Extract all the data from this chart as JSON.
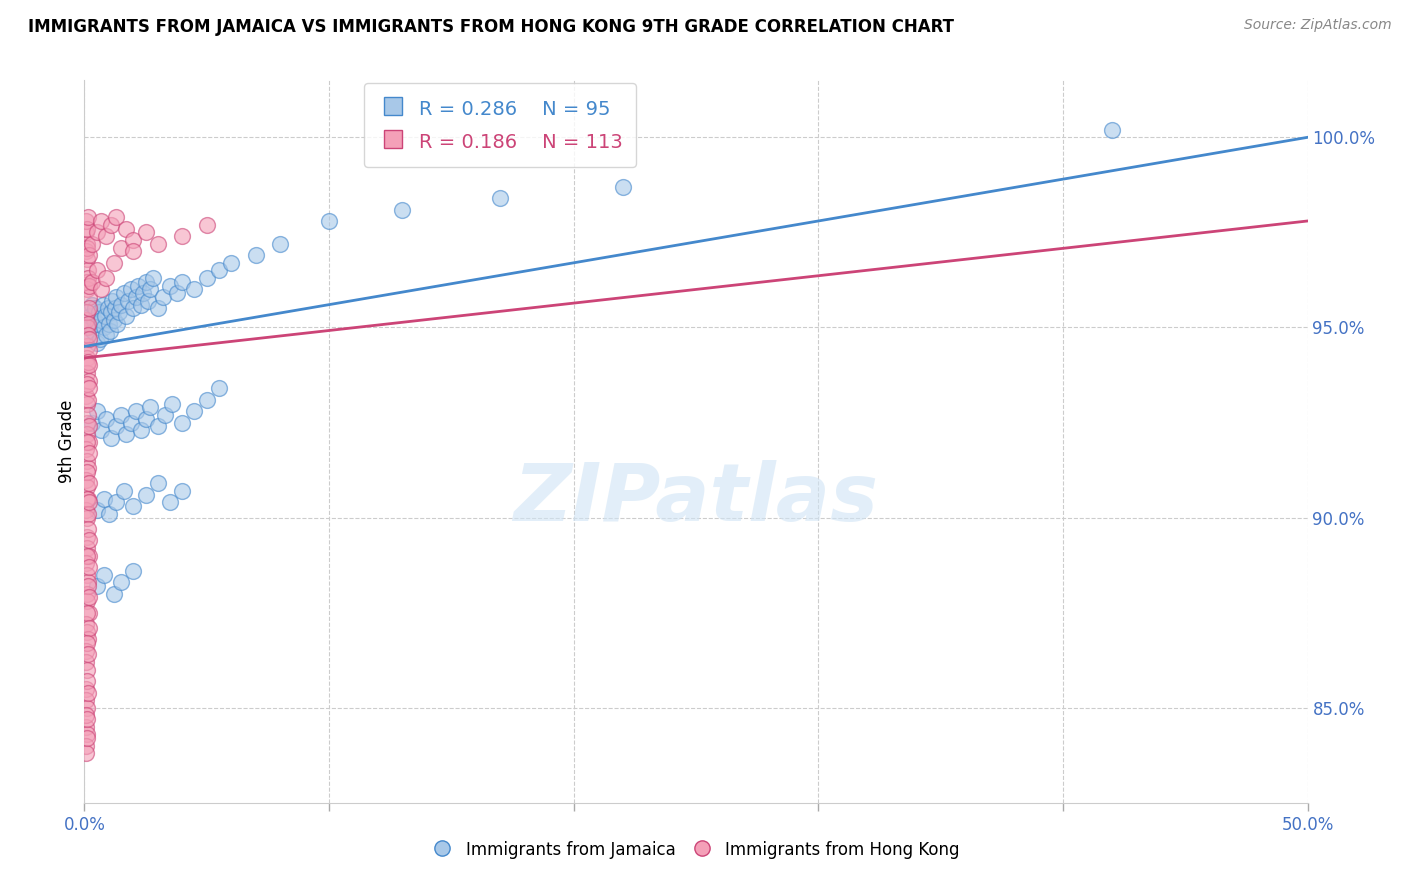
{
  "title": "IMMIGRANTS FROM JAMAICA VS IMMIGRANTS FROM HONG KONG 9TH GRADE CORRELATION CHART",
  "source": "Source: ZipAtlas.com",
  "ylabel": "9th Grade",
  "right_yticks": [
    85.0,
    90.0,
    95.0,
    100.0
  ],
  "xlim": [
    0.0,
    50.0
  ],
  "ylim": [
    82.5,
    101.5
  ],
  "legend_blue_r": "0.286",
  "legend_blue_n": "95",
  "legend_pink_r": "0.186",
  "legend_pink_n": "113",
  "blue_color": "#a8c8e8",
  "pink_color": "#f4a0b8",
  "trendline_blue_color": "#4488cc",
  "trendline_pink_color": "#cc4477",
  "watermark": "ZIPatlas",
  "blue_trendline": [
    [
      0,
      94.5
    ],
    [
      50,
      100.0
    ]
  ],
  "pink_trendline": [
    [
      0,
      94.2
    ],
    [
      50,
      97.8
    ]
  ],
  "blue_scatter": [
    [
      0.15,
      94.8
    ],
    [
      0.2,
      95.0
    ],
    [
      0.25,
      95.3
    ],
    [
      0.3,
      95.6
    ],
    [
      0.35,
      94.9
    ],
    [
      0.4,
      95.2
    ],
    [
      0.45,
      95.5
    ],
    [
      0.5,
      94.6
    ],
    [
      0.55,
      95.1
    ],
    [
      0.6,
      95.4
    ],
    [
      0.65,
      94.7
    ],
    [
      0.7,
      95.2
    ],
    [
      0.75,
      95.6
    ],
    [
      0.8,
      95.0
    ],
    [
      0.85,
      95.3
    ],
    [
      0.9,
      94.8
    ],
    [
      0.95,
      95.5
    ],
    [
      1.0,
      95.1
    ],
    [
      1.05,
      94.9
    ],
    [
      1.1,
      95.4
    ],
    [
      1.15,
      95.7
    ],
    [
      1.2,
      95.2
    ],
    [
      1.25,
      95.5
    ],
    [
      1.3,
      95.8
    ],
    [
      1.35,
      95.1
    ],
    [
      1.4,
      95.4
    ],
    [
      1.5,
      95.6
    ],
    [
      1.6,
      95.9
    ],
    [
      1.7,
      95.3
    ],
    [
      1.8,
      95.7
    ],
    [
      1.9,
      96.0
    ],
    [
      2.0,
      95.5
    ],
    [
      2.1,
      95.8
    ],
    [
      2.2,
      96.1
    ],
    [
      2.3,
      95.6
    ],
    [
      2.4,
      95.9
    ],
    [
      2.5,
      96.2
    ],
    [
      2.6,
      95.7
    ],
    [
      2.7,
      96.0
    ],
    [
      2.8,
      96.3
    ],
    [
      3.0,
      95.5
    ],
    [
      3.2,
      95.8
    ],
    [
      3.5,
      96.1
    ],
    [
      3.8,
      95.9
    ],
    [
      4.0,
      96.2
    ],
    [
      4.5,
      96.0
    ],
    [
      5.0,
      96.3
    ],
    [
      5.5,
      96.5
    ],
    [
      6.0,
      96.7
    ],
    [
      7.0,
      96.9
    ],
    [
      0.3,
      92.5
    ],
    [
      0.5,
      92.8
    ],
    [
      0.7,
      92.3
    ],
    [
      0.9,
      92.6
    ],
    [
      1.1,
      92.1
    ],
    [
      1.3,
      92.4
    ],
    [
      1.5,
      92.7
    ],
    [
      1.7,
      92.2
    ],
    [
      1.9,
      92.5
    ],
    [
      2.1,
      92.8
    ],
    [
      2.3,
      92.3
    ],
    [
      2.5,
      92.6
    ],
    [
      2.7,
      92.9
    ],
    [
      3.0,
      92.4
    ],
    [
      3.3,
      92.7
    ],
    [
      3.6,
      93.0
    ],
    [
      4.0,
      92.5
    ],
    [
      4.5,
      92.8
    ],
    [
      5.0,
      93.1
    ],
    [
      5.5,
      93.4
    ],
    [
      0.5,
      90.2
    ],
    [
      0.8,
      90.5
    ],
    [
      1.0,
      90.1
    ],
    [
      1.3,
      90.4
    ],
    [
      1.6,
      90.7
    ],
    [
      2.0,
      90.3
    ],
    [
      2.5,
      90.6
    ],
    [
      3.0,
      90.9
    ],
    [
      3.5,
      90.4
    ],
    [
      4.0,
      90.7
    ],
    [
      0.5,
      88.2
    ],
    [
      0.8,
      88.5
    ],
    [
      1.2,
      88.0
    ],
    [
      1.5,
      88.3
    ],
    [
      2.0,
      88.6
    ],
    [
      8.0,
      97.2
    ],
    [
      10.0,
      97.8
    ],
    [
      13.0,
      98.1
    ],
    [
      17.0,
      98.4
    ],
    [
      22.0,
      98.7
    ],
    [
      42.0,
      100.2
    ]
  ],
  "pink_scatter": [
    [
      0.05,
      97.5
    ],
    [
      0.08,
      97.8
    ],
    [
      0.1,
      97.2
    ],
    [
      0.12,
      97.6
    ],
    [
      0.15,
      97.9
    ],
    [
      0.08,
      97.0
    ],
    [
      0.1,
      96.8
    ],
    [
      0.12,
      97.1
    ],
    [
      0.15,
      96.5
    ],
    [
      0.18,
      96.9
    ],
    [
      0.1,
      96.2
    ],
    [
      0.12,
      96.0
    ],
    [
      0.15,
      96.3
    ],
    [
      0.18,
      95.8
    ],
    [
      0.2,
      96.1
    ],
    [
      0.08,
      95.2
    ],
    [
      0.1,
      95.0
    ],
    [
      0.12,
      95.4
    ],
    [
      0.15,
      95.1
    ],
    [
      0.18,
      95.5
    ],
    [
      0.1,
      94.5
    ],
    [
      0.12,
      94.2
    ],
    [
      0.15,
      94.8
    ],
    [
      0.18,
      94.4
    ],
    [
      0.2,
      94.7
    ],
    [
      0.1,
      94.0
    ],
    [
      0.12,
      93.8
    ],
    [
      0.15,
      94.1
    ],
    [
      0.18,
      93.6
    ],
    [
      0.2,
      94.0
    ],
    [
      0.08,
      93.2
    ],
    [
      0.1,
      93.0
    ],
    [
      0.12,
      93.5
    ],
    [
      0.15,
      93.1
    ],
    [
      0.18,
      93.4
    ],
    [
      0.1,
      92.5
    ],
    [
      0.12,
      92.2
    ],
    [
      0.15,
      92.7
    ],
    [
      0.18,
      92.0
    ],
    [
      0.2,
      92.4
    ],
    [
      0.08,
      91.8
    ],
    [
      0.1,
      91.5
    ],
    [
      0.12,
      92.0
    ],
    [
      0.15,
      91.3
    ],
    [
      0.18,
      91.7
    ],
    [
      0.08,
      91.0
    ],
    [
      0.1,
      90.8
    ],
    [
      0.12,
      91.2
    ],
    [
      0.15,
      90.5
    ],
    [
      0.18,
      90.9
    ],
    [
      0.08,
      90.2
    ],
    [
      0.1,
      90.0
    ],
    [
      0.12,
      90.5
    ],
    [
      0.15,
      90.1
    ],
    [
      0.18,
      90.4
    ],
    [
      0.1,
      89.5
    ],
    [
      0.12,
      89.2
    ],
    [
      0.15,
      89.7
    ],
    [
      0.18,
      89.0
    ],
    [
      0.2,
      89.4
    ],
    [
      0.08,
      88.8
    ],
    [
      0.1,
      88.5
    ],
    [
      0.12,
      89.0
    ],
    [
      0.15,
      88.3
    ],
    [
      0.18,
      88.7
    ],
    [
      0.1,
      88.0
    ],
    [
      0.12,
      87.8
    ],
    [
      0.15,
      88.2
    ],
    [
      0.18,
      87.5
    ],
    [
      0.2,
      87.9
    ],
    [
      0.08,
      87.2
    ],
    [
      0.1,
      87.0
    ],
    [
      0.12,
      87.5
    ],
    [
      0.15,
      86.8
    ],
    [
      0.18,
      87.1
    ],
    [
      0.05,
      86.5
    ],
    [
      0.08,
      86.2
    ],
    [
      0.1,
      86.7
    ],
    [
      0.12,
      86.0
    ],
    [
      0.15,
      86.4
    ],
    [
      0.05,
      85.5
    ],
    [
      0.08,
      85.2
    ],
    [
      0.1,
      85.7
    ],
    [
      0.12,
      85.0
    ],
    [
      0.15,
      85.4
    ],
    [
      0.05,
      84.5
    ],
    [
      0.08,
      84.8
    ],
    [
      0.1,
      84.3
    ],
    [
      0.12,
      84.7
    ],
    [
      0.05,
      84.0
    ],
    [
      0.08,
      83.8
    ],
    [
      0.1,
      84.2
    ],
    [
      0.3,
      97.2
    ],
    [
      0.5,
      97.5
    ],
    [
      0.7,
      97.8
    ],
    [
      0.9,
      97.4
    ],
    [
      1.1,
      97.7
    ],
    [
      1.3,
      97.9
    ],
    [
      1.5,
      97.1
    ],
    [
      1.7,
      97.6
    ],
    [
      2.0,
      97.3
    ],
    [
      2.5,
      97.5
    ],
    [
      0.3,
      96.2
    ],
    [
      0.5,
      96.5
    ],
    [
      0.7,
      96.0
    ],
    [
      0.9,
      96.3
    ],
    [
      1.2,
      96.7
    ],
    [
      2.0,
      97.0
    ],
    [
      3.0,
      97.2
    ],
    [
      4.0,
      97.4
    ],
    [
      5.0,
      97.7
    ]
  ]
}
